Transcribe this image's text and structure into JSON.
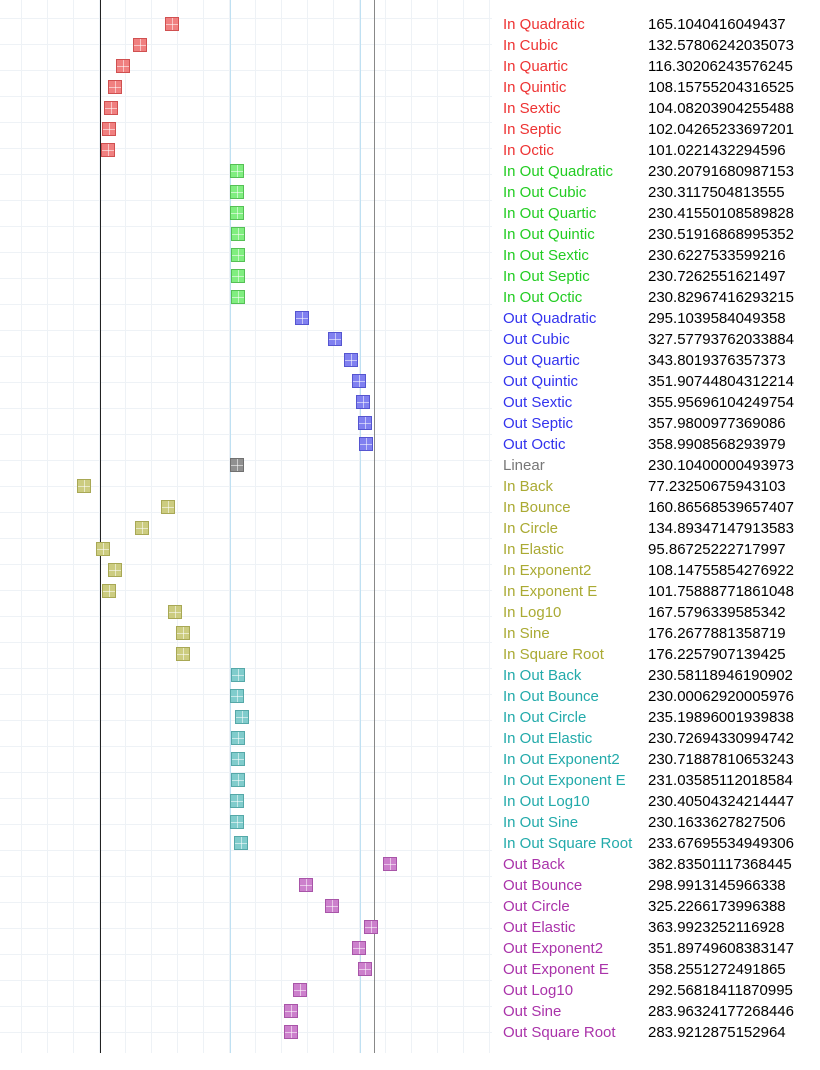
{
  "guide_lines": [
    {
      "value": 100,
      "style": "dark"
    },
    {
      "value": 230,
      "style": "light"
    },
    {
      "value": 360,
      "style": "light"
    },
    {
      "value": 374,
      "style": "gray"
    }
  ],
  "groups": [
    {
      "color": "#ee3333",
      "fill": "#f08080",
      "edge": "#d05050"
    },
    {
      "color": "#22cc22",
      "fill": "#80ee80",
      "edge": "#55c055"
    },
    {
      "color": "#3333ee",
      "fill": "#8080f0",
      "edge": "#5555d0"
    },
    {
      "color": "#777777",
      "fill": "#909090",
      "edge": "#707070"
    },
    {
      "color": "#aaaa33",
      "fill": "#cccc80",
      "edge": "#a8a855"
    },
    {
      "color": "#22aaaa",
      "fill": "#80cccc",
      "edge": "#55a8a8"
    },
    {
      "color": "#aa33aa",
      "fill": "#cc80cc",
      "edge": "#a855a8"
    }
  ],
  "rows": [
    {
      "label": "In Quadratic",
      "value": "165.1040416049437",
      "group": 0
    },
    {
      "label": "In Cubic",
      "value": "132.57806242035073",
      "group": 0
    },
    {
      "label": "In Quartic",
      "value": "116.30206243576245",
      "group": 0
    },
    {
      "label": "In Quintic",
      "value": "108.15755204316525",
      "group": 0
    },
    {
      "label": "In Sextic",
      "value": "104.08203904255488",
      "group": 0
    },
    {
      "label": "In Septic",
      "value": "102.04265233697201",
      "group": 0
    },
    {
      "label": "In Octic",
      "value": "101.0221432294596",
      "group": 0
    },
    {
      "label": "In Out Quadratic",
      "value": "230.20791680987153",
      "group": 1
    },
    {
      "label": "In Out Cubic",
      "value": "230.3117504813555",
      "group": 1
    },
    {
      "label": "In Out Quartic",
      "value": "230.41550108589828",
      "group": 1
    },
    {
      "label": "In Out Quintic",
      "value": "230.51916868995352",
      "group": 1
    },
    {
      "label": "In Out Sextic",
      "value": "230.6227533599216",
      "group": 1
    },
    {
      "label": "In Out Septic",
      "value": "230.7262551621497",
      "group": 1
    },
    {
      "label": "In Out Octic",
      "value": "230.82967416293215",
      "group": 1
    },
    {
      "label": "Out Quadratic",
      "value": "295.1039584049358",
      "group": 2
    },
    {
      "label": "Out Cubic",
      "value": "327.57793762033884",
      "group": 2
    },
    {
      "label": "Out Quartic",
      "value": "343.8019376357373",
      "group": 2
    },
    {
      "label": "Out Quintic",
      "value": "351.90744804312214",
      "group": 2
    },
    {
      "label": "Out Sextic",
      "value": "355.95696104249754",
      "group": 2
    },
    {
      "label": "Out Septic",
      "value": "357.9800977369086",
      "group": 2
    },
    {
      "label": "Out Octic",
      "value": "358.9908568293979",
      "group": 2
    },
    {
      "label": "Linear",
      "value": "230.10400000493973",
      "group": 3
    },
    {
      "label": "In Back",
      "value": "77.23250675943103",
      "group": 4
    },
    {
      "label": "In Bounce",
      "value": "160.86568539657407",
      "group": 4
    },
    {
      "label": "In Circle",
      "value": "134.89347147913583",
      "group": 4
    },
    {
      "label": "In Elastic",
      "value": "95.86725222717997",
      "group": 4
    },
    {
      "label": "In Exponent2",
      "value": "108.14755854276922",
      "group": 4
    },
    {
      "label": "In Exponent E",
      "value": "101.75888771861048",
      "group": 4
    },
    {
      "label": "In Log10",
      "value": "167.5796339585342",
      "group": 4
    },
    {
      "label": "In Sine",
      "value": "176.2677881358719",
      "group": 4
    },
    {
      "label": "In Square Root",
      "value": "176.2257907139425",
      "group": 4
    },
    {
      "label": "In Out Back",
      "value": "230.58118946190902",
      "group": 5
    },
    {
      "label": "In Out Bounce",
      "value": "230.00062920005976",
      "group": 5
    },
    {
      "label": "In Out Circle",
      "value": "235.19896001939838",
      "group": 5
    },
    {
      "label": "In Out Elastic",
      "value": "230.72694330994742",
      "group": 5
    },
    {
      "label": "In Out Exponent2",
      "value": "230.71887810653243",
      "group": 5
    },
    {
      "label": "In Out Exponent E",
      "value": "231.03585112018584",
      "group": 5
    },
    {
      "label": "In Out Log10",
      "value": "230.40504324214447",
      "group": 5
    },
    {
      "label": "In Out Sine",
      "value": "230.1633627827506",
      "group": 5
    },
    {
      "label": "In Out Square Root",
      "value": "233.67695534949306",
      "group": 5
    },
    {
      "label": "Out Back",
      "value": "382.83501117368445",
      "group": 6
    },
    {
      "label": "Out Bounce",
      "value": "298.9913145966338",
      "group": 6
    },
    {
      "label": "Out Circle",
      "value": "325.2266173996388",
      "group": 6
    },
    {
      "label": "Out Elastic",
      "value": "363.9923252116928",
      "group": 6
    },
    {
      "label": "Out Exponent2",
      "value": "351.89749608383147",
      "group": 6
    },
    {
      "label": "Out Exponent E",
      "value": "358.2551272491865",
      "group": 6
    },
    {
      "label": "Out Log10",
      "value": "292.56818411870995",
      "group": 6
    },
    {
      "label": "Out Sine",
      "value": "283.96324177268446",
      "group": 6
    },
    {
      "label": "Out Square Root",
      "value": "283.9212875152964",
      "group": 6
    }
  ]
}
